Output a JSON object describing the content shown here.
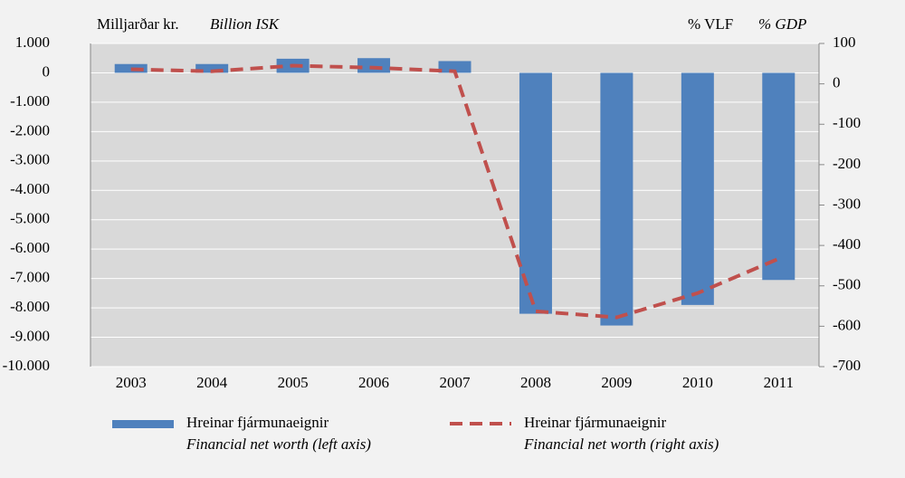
{
  "chart_data": {
    "type": "bar_line",
    "y_label": "Milljarðar kr.",
    "y_label_en": "Billion ISK",
    "y2_label": "% VLF",
    "y2_label_en": "% GDP",
    "categories": [
      "2003",
      "2004",
      "2005",
      "2006",
      "2007",
      "2008",
      "2009",
      "2010",
      "2011"
    ],
    "series": [
      {
        "name": "Hreinar fjármunaeignir",
        "name_en": "Financial net worth (left axis)",
        "type": "bar",
        "color": "#4f81bd",
        "values": [
          300,
          300,
          480,
          500,
          400,
          -8200,
          -8600,
          -7900,
          -7050
        ]
      },
      {
        "name": "Hreinar fjármunaeignir",
        "name_en": "Financial net worth (right axis)",
        "type": "line",
        "axis": "y2",
        "color": "#c0504d",
        "dashed": true,
        "values": [
          36,
          31,
          45,
          40,
          31,
          -563,
          -578,
          -518,
          -433
        ]
      }
    ],
    "ylim": [
      -10000,
      1000
    ],
    "yticks": [
      {
        "value": 1000,
        "label": "1.000"
      },
      0,
      {
        "value": -1000,
        "label": "-1.000"
      },
      {
        "value": -2000,
        "label": "-2.000"
      },
      {
        "value": -3000,
        "label": "-3.000"
      },
      {
        "value": -4000,
        "label": "-4.000"
      },
      {
        "value": -5000,
        "label": "-5.000"
      },
      {
        "value": -6000,
        "label": "-6.000"
      },
      {
        "value": -7000,
        "label": "-7.000"
      },
      {
        "value": -8000,
        "label": "-8.000"
      },
      {
        "value": -9000,
        "label": "-9.000"
      },
      {
        "value": -10000,
        "label": "-10.000"
      }
    ],
    "y2lim": [
      -700,
      100
    ],
    "y2ticks": [
      100,
      0,
      -100,
      -200,
      -300,
      -400,
      -500,
      -600,
      -700
    ],
    "grid": true
  }
}
